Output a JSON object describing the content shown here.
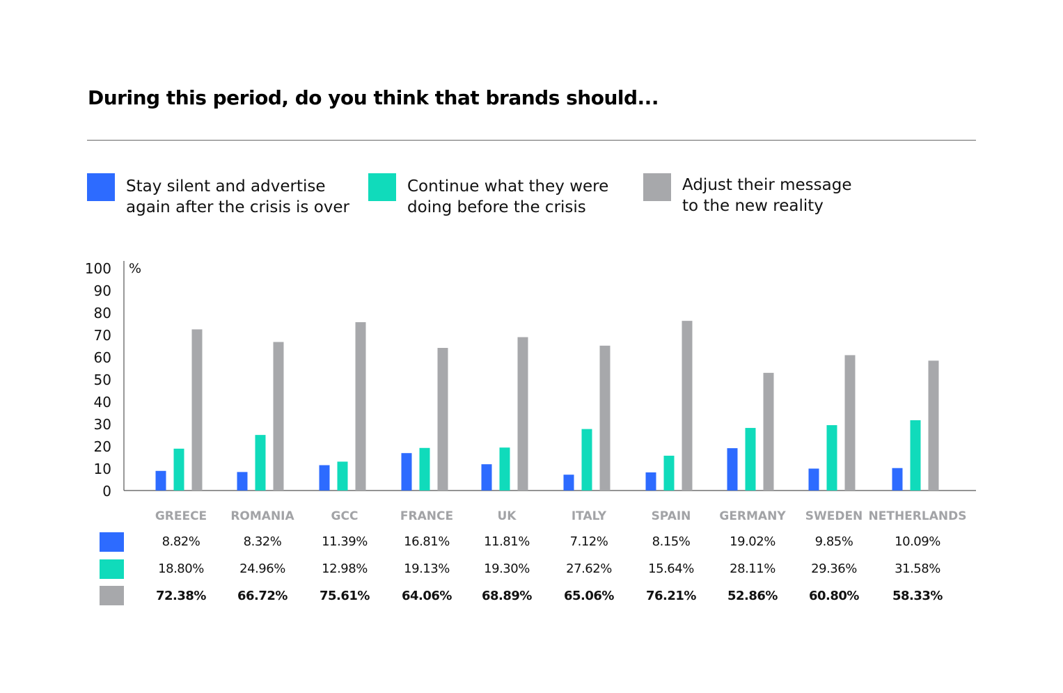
{
  "title": "During this period, do you think that brands should...",
  "legend": [
    {
      "line1": "Stay silent and advertise",
      "line2": "again after the crisis is over",
      "color": "#2d6bff"
    },
    {
      "line1": "Continue what they were",
      "line2": "doing before the crisis",
      "color": "#10dbbb"
    },
    {
      "line1": "Adjust their message",
      "line2": "to the new reality",
      "color": "#a7a8ab"
    }
  ],
  "chart_data": {
    "type": "bar",
    "unit_label": "%",
    "ylim": [
      0,
      100
    ],
    "yticks": [
      "0",
      "10",
      "20",
      "30",
      "40",
      "50",
      "60",
      "70",
      "80",
      "90",
      "100"
    ],
    "categories": [
      "GREECE",
      "ROMANIA",
      "GCC",
      "FRANCE",
      "UK",
      "ITALY",
      "SPAIN",
      "GERMANY",
      "SWEDEN",
      "NETHERLANDS"
    ],
    "series": [
      {
        "name": "Stay silent and advertise again after the crisis is over",
        "color": "#2d6bff",
        "values": [
          8.82,
          8.32,
          11.39,
          16.81,
          11.81,
          7.12,
          8.15,
          19.02,
          9.85,
          10.09
        ],
        "labels": [
          "8.82%",
          "8.32%",
          "11.39%",
          "16.81%",
          "11.81%",
          "7.12%",
          "8.15%",
          "19.02%",
          "9.85%",
          "10.09%"
        ]
      },
      {
        "name": "Continue what they were doing before the crisis",
        "color": "#10dbbb",
        "values": [
          18.8,
          24.96,
          12.98,
          19.13,
          19.3,
          27.62,
          15.64,
          28.11,
          29.36,
          31.58
        ],
        "labels": [
          "18.80%",
          "24.96%",
          "12.98%",
          "19.13%",
          "19.30%",
          "27.62%",
          "15.64%",
          "28.11%",
          "29.36%",
          "31.58%"
        ]
      },
      {
        "name": "Adjust their message to the new reality",
        "color": "#a7a8ab",
        "values": [
          72.38,
          66.72,
          75.61,
          64.06,
          68.89,
          65.06,
          76.21,
          52.86,
          60.8,
          58.33
        ],
        "labels": [
          "72.38%",
          "66.72%",
          "75.61%",
          "64.06%",
          "68.89%",
          "65.06%",
          "76.21%",
          "52.86%",
          "60.80%",
          "58.33%"
        ]
      }
    ]
  }
}
